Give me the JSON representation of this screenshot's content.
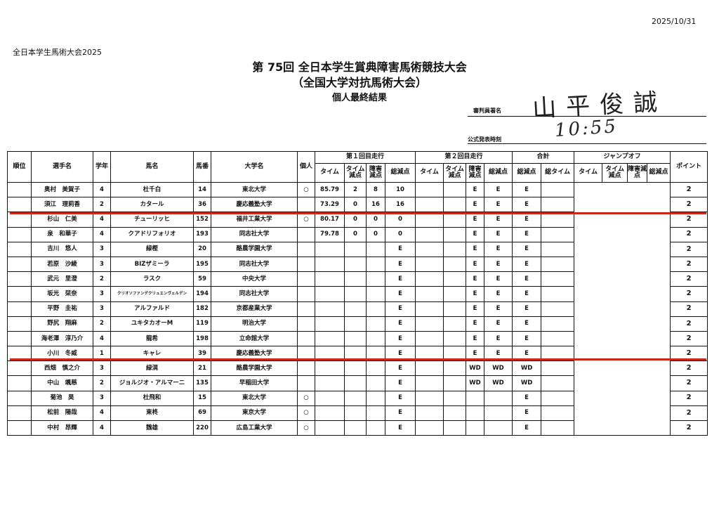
{
  "header": {
    "date": "2025/10/31",
    "organizer": "全日本学生馬術大会2025",
    "title_line1": "第 75回 全日本学生賞典障害馬術競技大会",
    "title_line2": "（全国大学対抗馬術大会）",
    "title_line3": "個人最終結果",
    "judge_signature_label": "審判員署名",
    "judge_signature": "山平俊誠",
    "official_time_label": "公式発表時刻",
    "official_time": "10:55"
  },
  "table": {
    "headers": {
      "rank": "順位",
      "rider": "選手名",
      "year": "学年",
      "horse": "馬名",
      "horse_no": "馬番",
      "university": "大学名",
      "individual": "個人",
      "round1": "第１回目走行",
      "round2": "第２回目走行",
      "total": "合計",
      "jumpoff": "ジャンプオフ",
      "points": "ポイント",
      "time": "タイム",
      "time_penalty": "タイム減点",
      "obstacle_penalty": "障害減点",
      "total_penalty": "総減点",
      "total_time": "総タイム"
    },
    "rows": [
      [
        "",
        "奥村　美賀子",
        "4",
        "杜千白",
        "14",
        "東北大学",
        "○",
        "85.79",
        "2",
        "8",
        "10",
        "",
        "",
        "E",
        "E",
        "E",
        "",
        "2"
      ],
      [
        "",
        "須江　理莉香",
        "2",
        "カタール",
        "36",
        "慶応義塾大学",
        "",
        "73.29",
        "0",
        "16",
        "16",
        "",
        "",
        "E",
        "E",
        "E",
        "",
        "2"
      ],
      [
        "",
        "杉山　仁美",
        "4",
        "チューリッヒ",
        "152",
        "福井工業大学",
        "○",
        "80.17",
        "0",
        "0",
        "0",
        "",
        "",
        "E",
        "E",
        "E",
        "",
        "2"
      ],
      [
        "",
        "泉　和華子",
        "4",
        "クアドリフォリオ",
        "193",
        "同志社大学",
        "",
        "79.78",
        "0",
        "0",
        "0",
        "",
        "",
        "E",
        "E",
        "E",
        "",
        "2"
      ],
      [
        "",
        "吉川　悠人",
        "3",
        "緑樫",
        "20",
        "酪農学園大学",
        "",
        "",
        "",
        "",
        "E",
        "",
        "",
        "E",
        "E",
        "E",
        "",
        "2"
      ],
      [
        "",
        "若原　沙綾",
        "3",
        "BIZザミーラ",
        "195",
        "同志社大学",
        "",
        "",
        "",
        "",
        "E",
        "",
        "",
        "E",
        "E",
        "E",
        "",
        "2"
      ],
      [
        "",
        "武元　里澄",
        "2",
        "ラスク",
        "59",
        "中央大学",
        "",
        "",
        "",
        "",
        "E",
        "",
        "",
        "E",
        "E",
        "E",
        "",
        "2"
      ],
      [
        "",
        "坂光　栞奈",
        "3",
        "クリオソファンデクリュエンヴェルデン",
        "194",
        "同志社大学",
        "",
        "",
        "",
        "",
        "E",
        "",
        "",
        "E",
        "E",
        "E",
        "",
        "2"
      ],
      [
        "",
        "平野　圭祐",
        "3",
        "アルファルド",
        "182",
        "京都産業大学",
        "",
        "",
        "",
        "",
        "E",
        "",
        "",
        "E",
        "E",
        "E",
        "",
        "2"
      ],
      [
        "",
        "野尻　翔麻",
        "2",
        "ユキタカオーM",
        "119",
        "明治大学",
        "",
        "",
        "",
        "",
        "E",
        "",
        "",
        "E",
        "E",
        "E",
        "",
        "2"
      ],
      [
        "",
        "海老澤　淳乃介",
        "4",
        "龍希",
        "198",
        "立命館大学",
        "",
        "",
        "",
        "",
        "E",
        "",
        "",
        "E",
        "E",
        "E",
        "",
        "2"
      ],
      [
        "",
        "小川　冬威",
        "1",
        "キャレ",
        "39",
        "慶応義塾大学",
        "",
        "",
        "",
        "",
        "E",
        "",
        "",
        "E",
        "E",
        "E",
        "",
        "2"
      ],
      [
        "",
        "西畑　慎之介",
        "3",
        "緑滉",
        "21",
        "酪農学園大学",
        "",
        "",
        "",
        "",
        "E",
        "",
        "",
        "WD",
        "WD",
        "WD",
        "",
        "2"
      ],
      [
        "",
        "中山　颯慈",
        "2",
        "ジョルジオ・アルマーニ",
        "135",
        "早稲田大学",
        "",
        "",
        "",
        "",
        "E",
        "",
        "",
        "WD",
        "WD",
        "WD",
        "",
        "2"
      ],
      [
        "",
        "菊池　昊",
        "3",
        "杜飛和",
        "15",
        "東北大学",
        "○",
        "",
        "",
        "",
        "E",
        "",
        "",
        "",
        "",
        "E",
        "",
        "2"
      ],
      [
        "",
        "松前　陽哉",
        "4",
        "東柊",
        "69",
        "東京大学",
        "○",
        "",
        "",
        "",
        "E",
        "",
        "",
        "",
        "",
        "E",
        "",
        "2"
      ],
      [
        "",
        "中村　昂輝",
        "4",
        "魏雄",
        "220",
        "広島工業大学",
        "○",
        "",
        "",
        "",
        "E",
        "",
        "",
        "",
        "",
        "E",
        "",
        "2"
      ]
    ]
  },
  "colors": {
    "divider": "#c8281e",
    "ink": "#111111"
  }
}
